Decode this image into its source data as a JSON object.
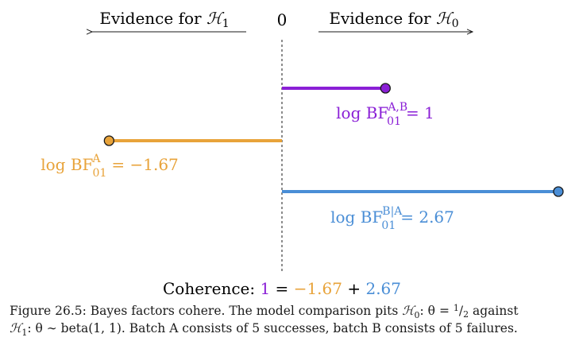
{
  "header": {
    "left_label": "Evidence for ",
    "left_sym": "ℋ",
    "left_sub": "1",
    "center_label": "0",
    "right_label": "Evidence for ",
    "right_sym": "ℋ",
    "right_sub": "0"
  },
  "colors": {
    "purple": "#8a1fd6",
    "orange": "#e8a33a",
    "blue": "#4a8ed6",
    "text": "#1a1a1a"
  },
  "chart_data": {
    "type": "diagram",
    "zero_value": 0,
    "scale_max": 2.67,
    "bars": [
      {
        "name": "AB",
        "value": 1,
        "color": "purple",
        "label_prefix": "log BF",
        "label_sub": "01",
        "label_sup": "A,B",
        "label_value": "= 1"
      },
      {
        "name": "A",
        "value": -1.67,
        "color": "orange",
        "label_prefix": "log BF",
        "label_sub": "01",
        "label_sup": "A",
        "label_value": "= −1.67"
      },
      {
        "name": "BgivenA",
        "value": 2.67,
        "color": "blue",
        "label_prefix": "log BF",
        "label_sub": "01",
        "label_sup": "B|A",
        "label_value": "= 2.67"
      }
    ]
  },
  "coherence": {
    "label": "Coherence: ",
    "v1": "1",
    "eq": " = ",
    "v2": "−1.67",
    "plus": " + ",
    "v3": "2.67"
  },
  "caption": {
    "line1_a": "Figure 26.5: Bayes factors cohere. The model comparison pits ",
    "line1_sym": "ℋ",
    "line1_sub": "0",
    "line1_b": ": θ = ",
    "line1_num": "1",
    "line1_slash": "/",
    "line1_den": "2",
    "line1_c": " against",
    "line2_sym": "ℋ",
    "line2_sub": "1",
    "line2_a": ": θ ∼ beta(1, 1). Batch A consists of 5 successes, batch B consists of 5 failures."
  }
}
